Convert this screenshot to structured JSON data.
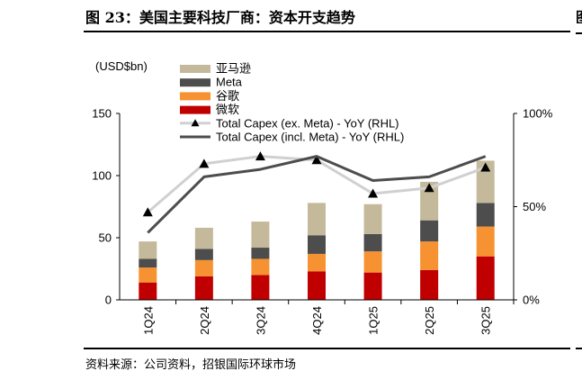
{
  "figure": {
    "title": "图 23：美国主要科技厂商：资本开支趋势",
    "source": "资料来源：公司资料，招银国际环球市场",
    "edge_glyph": "图"
  },
  "chart_data": {
    "type": "bar",
    "stacked": true,
    "unit_label": "(USD$bn)",
    "categories": [
      "1Q24",
      "2Q24",
      "3Q24",
      "4Q24",
      "1Q25",
      "2Q25",
      "3Q25"
    ],
    "series": [
      {
        "name": "微软",
        "color": "#c00000",
        "values": [
          14,
          19,
          20,
          23,
          22,
          24,
          35
        ]
      },
      {
        "name": "谷歌",
        "color": "#f79232",
        "values": [
          12,
          13,
          13,
          14,
          17,
          23,
          24
        ]
      },
      {
        "name": "Meta",
        "color": "#4d4d4d",
        "values": [
          7,
          9,
          9,
          15,
          14,
          17,
          19
        ]
      },
      {
        "name": "亚马逊",
        "color": "#c4b99b",
        "values": [
          14,
          17,
          21,
          26,
          24,
          31,
          34
        ]
      }
    ],
    "lines": [
      {
        "name": "Total Capex (ex. Meta) - YoY (RHL)",
        "color": "#d0d0d0",
        "marker": "triangle",
        "values": [
          47,
          73,
          77,
          75,
          57,
          60,
          71
        ]
      },
      {
        "name": "Total Capex (incl. Meta) - YoY (RHL)",
        "color": "#4d4d4d",
        "marker": "none",
        "values": [
          36,
          66,
          70,
          77,
          64,
          66,
          77
        ]
      }
    ],
    "y_left": {
      "min": 0,
      "max": 150,
      "ticks": [
        0,
        50,
        100,
        150
      ]
    },
    "y_right": {
      "min": 0,
      "max": 100,
      "ticks": [
        0,
        50,
        100
      ],
      "tick_labels": [
        "0%",
        "50%",
        "100%"
      ]
    },
    "legend_order": [
      "亚马逊",
      "Meta",
      "谷歌",
      "微软",
      "Total Capex (ex. Meta) - YoY (RHL)",
      "Total Capex (incl. Meta) - YoY (RHL)"
    ],
    "legend_position": "top-left"
  }
}
